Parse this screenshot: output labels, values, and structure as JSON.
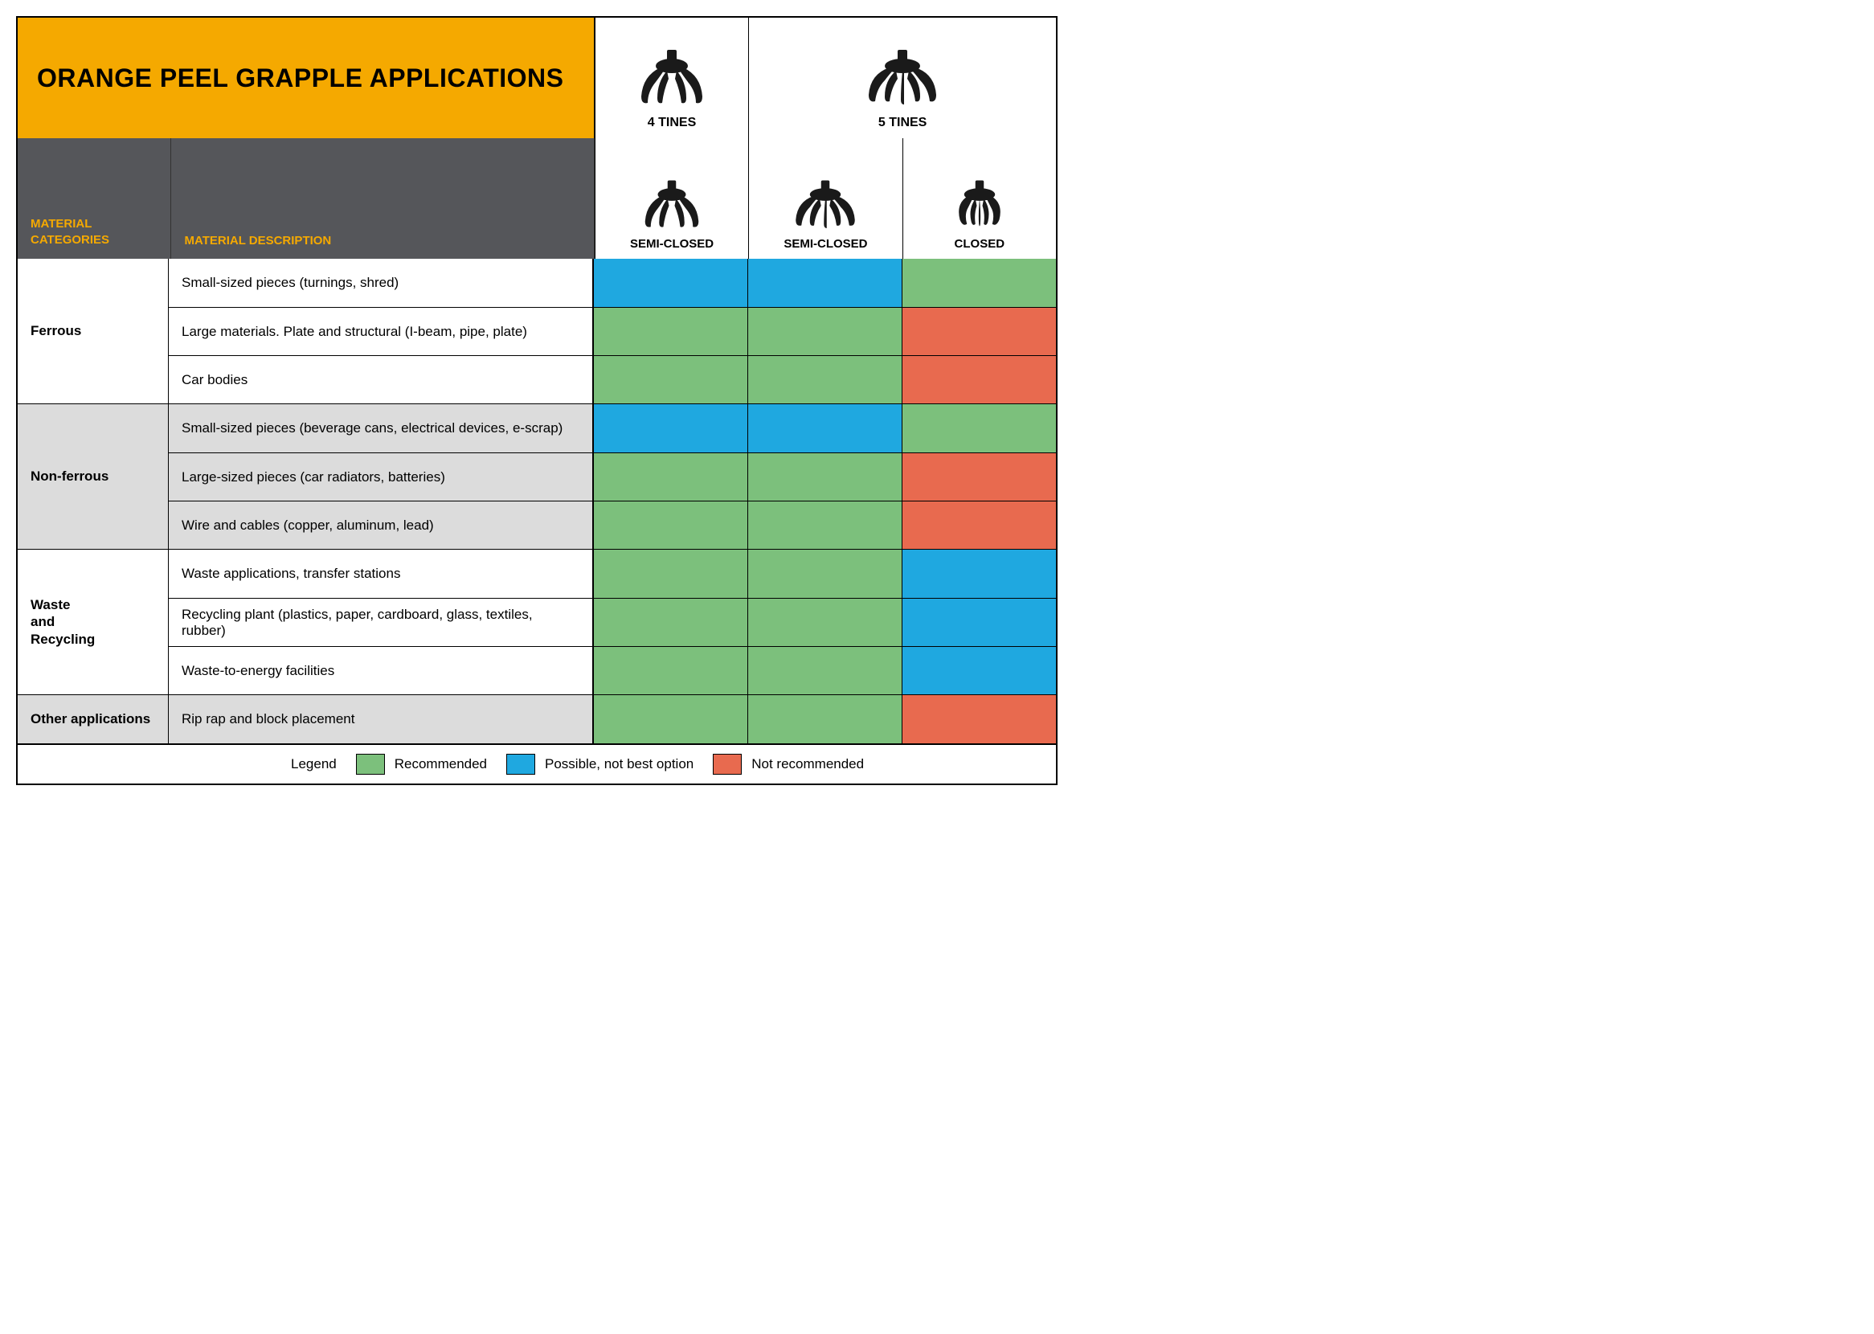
{
  "title": "ORANGE PEEL GRAPPLE APPLICATIONS",
  "colors": {
    "title_bg": "#f5a900",
    "header_bg": "#55565a",
    "header_fg": "#f5a900",
    "row_alt_bg": "#dcdcdc",
    "recommended": "#7cc07c",
    "possible": "#1fa8e0",
    "not_recommended": "#e86a4f",
    "white": "#ffffff"
  },
  "tine_headers": {
    "col_4": "4 TINES",
    "col_5": "5 TINES"
  },
  "sub_headers": {
    "categories": "MATERIAL\nCATEGORIES",
    "description": "MATERIAL DESCRIPTION",
    "col1": "SEMI-CLOSED",
    "col2": "SEMI-CLOSED",
    "col3": "CLOSED"
  },
  "legend": {
    "label": "Legend",
    "recommended": "Recommended",
    "possible": "Possible, not best option",
    "not_recommended": "Not recommended"
  },
  "categories": [
    {
      "name": "Ferrous",
      "alt": false,
      "rows": [
        {
          "desc": "Small-sized pieces (turnings, shred)",
          "s": [
            "possible",
            "possible",
            "recommended"
          ]
        },
        {
          "desc": "Large materials. Plate and structural (I-beam, pipe, plate)",
          "s": [
            "recommended",
            "recommended",
            "not_recommended"
          ]
        },
        {
          "desc": "Car bodies",
          "s": [
            "recommended",
            "recommended",
            "not_recommended"
          ]
        }
      ]
    },
    {
      "name": "Non-ferrous",
      "alt": true,
      "rows": [
        {
          "desc": "Small-sized pieces (beverage cans, electrical devices, e-scrap)",
          "s": [
            "possible",
            "possible",
            "recommended"
          ]
        },
        {
          "desc": "Large-sized pieces (car radiators, batteries)",
          "s": [
            "recommended",
            "recommended",
            "not_recommended"
          ]
        },
        {
          "desc": "Wire and cables (copper, aluminum, lead)",
          "s": [
            "recommended",
            "recommended",
            "not_recommended"
          ]
        }
      ]
    },
    {
      "name": "Waste\nand\nRecycling",
      "alt": false,
      "rows": [
        {
          "desc": "Waste applications, transfer stations",
          "s": [
            "recommended",
            "recommended",
            "possible"
          ]
        },
        {
          "desc": "Recycling plant (plastics, paper, cardboard, glass, textiles, rubber)",
          "s": [
            "recommended",
            "recommended",
            "possible"
          ]
        },
        {
          "desc": "Waste-to-energy facilities",
          "s": [
            "recommended",
            "recommended",
            "possible"
          ]
        }
      ]
    },
    {
      "name": "Other applications",
      "alt": true,
      "rows": [
        {
          "desc": "Rip rap and block placement",
          "s": [
            "recommended",
            "recommended",
            "not_recommended"
          ]
        }
      ]
    }
  ]
}
